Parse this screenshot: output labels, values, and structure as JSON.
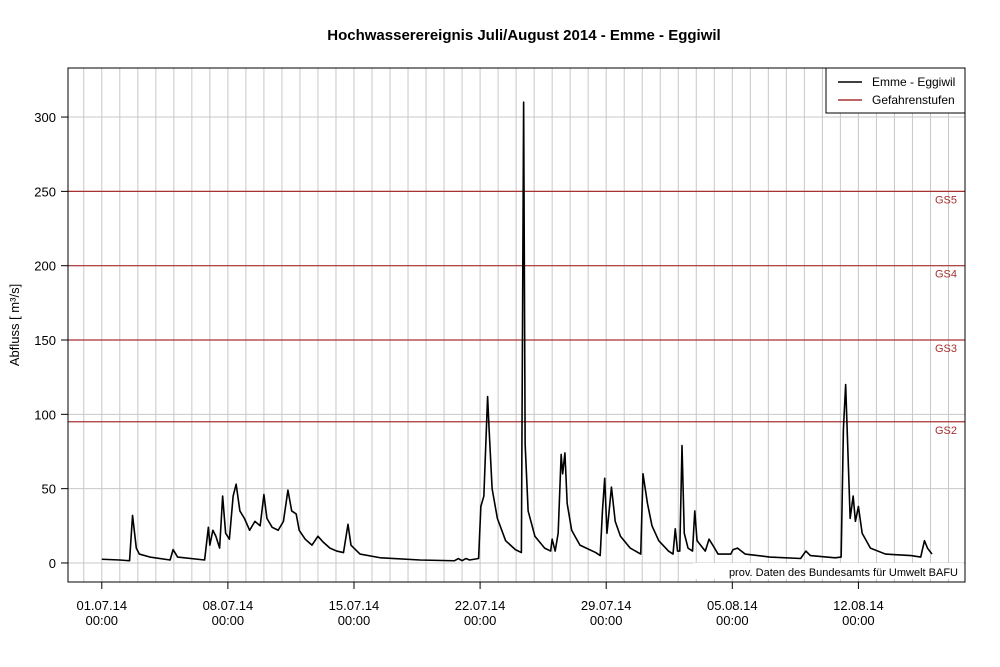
{
  "chart_data": {
    "type": "line",
    "title": "Hochwasserereignis Juli/August 2014 - Emme - Eggiwil",
    "y_label": "Abfluss [ m³/s]",
    "annotation": "prov. Daten des Bundesamts für Umwelt BAFU",
    "x": [
      "2014-07-01 00:00",
      "2014-07-02 00:00",
      "2014-07-02 13:00",
      "2014-07-02 17:00",
      "2014-07-02 22:00",
      "2014-07-03 02:00",
      "2014-07-03 16:00",
      "2014-07-04 19:00",
      "2014-07-04 23:00",
      "2014-07-05 05:00",
      "2014-07-06 17:00",
      "2014-07-06 22:00",
      "2014-07-07 00:00",
      "2014-07-07 04:00",
      "2014-07-07 08:00",
      "2014-07-07 13:00",
      "2014-07-07 17:00",
      "2014-07-07 21:00",
      "2014-07-08 02:00",
      "2014-07-08 07:00",
      "2014-07-08 11:00",
      "2014-07-08 16:00",
      "2014-07-08 22:00",
      "2014-07-09 05:00",
      "2014-07-09 12:00",
      "2014-07-09 19:00",
      "2014-07-10 00:00",
      "2014-07-10 04:00",
      "2014-07-10 11:00",
      "2014-07-10 19:00",
      "2014-07-11 02:00",
      "2014-07-11 08:00",
      "2014-07-11 13:00",
      "2014-07-11 19:00",
      "2014-07-11 23:00",
      "2014-07-12 07:00",
      "2014-07-12 16:00",
      "2014-07-13 00:00",
      "2014-07-13 07:00",
      "2014-07-13 16:00",
      "2014-07-14 01:00",
      "2014-07-14 10:00",
      "2014-07-14 16:00",
      "2014-07-14 20:00",
      "2014-07-15 08:00",
      "2014-07-16 11:00",
      "2014-07-18 16:00",
      "2014-07-20 14:00",
      "2014-07-20 19:00",
      "2014-07-21 00:00",
      "2014-07-21 05:00",
      "2014-07-21 10:00",
      "2014-07-21 22:00",
      "2014-07-22 01:00",
      "2014-07-22 05:00",
      "2014-07-22 10:00",
      "2014-07-22 12:00",
      "2014-07-22 16:00",
      "2014-07-22 23:00",
      "2014-07-23 10:00",
      "2014-07-23 23:00",
      "2014-07-24 07:00",
      "2014-07-24 10:00",
      "2014-07-24 12:00",
      "2014-07-24 16:00",
      "2014-07-25 01:00",
      "2014-07-25 14:00",
      "2014-07-25 22:00",
      "2014-07-26 00:00",
      "2014-07-26 04:00",
      "2014-07-26 08:00",
      "2014-07-26 12:00",
      "2014-07-26 14:00",
      "2014-07-26 17:00",
      "2014-07-26 20:00",
      "2014-07-27 02:00",
      "2014-07-27 13:00",
      "2014-07-28 10:00",
      "2014-07-28 16:00",
      "2014-07-28 19:00",
      "2014-07-28 22:00",
      "2014-07-29 01:00",
      "2014-07-29 07:00",
      "2014-07-29 12:00",
      "2014-07-29 19:00",
      "2014-07-30 08:00",
      "2014-07-30 22:00",
      "2014-07-31 01:00",
      "2014-07-31 07:00",
      "2014-07-31 13:00",
      "2014-07-31 22:00",
      "2014-08-01 11:00",
      "2014-08-01 17:00",
      "2014-08-01 20:00",
      "2014-08-01 23:00",
      "2014-08-02 02:00",
      "2014-08-02 05:00",
      "2014-08-02 08:00",
      "2014-08-02 13:00",
      "2014-08-02 19:00",
      "2014-08-02 22:00",
      "2014-08-03 01:00",
      "2014-08-03 12:00",
      "2014-08-03 17:00",
      "2014-08-03 22:00",
      "2014-08-04 05:00",
      "2014-08-04 22:00",
      "2014-08-05 01:00",
      "2014-08-05 07:00",
      "2014-08-05 17:00",
      "2014-08-07 02:00",
      "2014-08-08 19:00",
      "2014-08-09 02:00",
      "2014-08-09 08:00",
      "2014-08-10 17:00",
      "2014-08-11 01:00",
      "2014-08-11 04:00",
      "2014-08-11 07:00",
      "2014-08-11 11:00",
      "2014-08-11 13:00",
      "2014-08-11 17:00",
      "2014-08-11 20:00",
      "2014-08-12 00:00",
      "2014-08-12 05:00",
      "2014-08-12 16:00",
      "2014-08-13 12:00",
      "2014-08-14 22:00",
      "2014-08-15 11:00",
      "2014-08-15 16:00",
      "2014-08-15 20:00",
      "2014-08-16 02:00"
    ],
    "series": [
      {
        "name": "Emme - Eggiwil",
        "color": "#000000",
        "values": [
          2.5,
          2,
          1.5,
          32,
          10,
          6,
          4,
          2,
          9,
          4,
          2,
          24,
          12,
          22,
          18,
          10,
          45,
          20,
          16,
          45,
          53,
          35,
          30,
          22,
          28,
          25,
          46,
          30,
          24,
          22,
          28,
          49,
          35,
          33,
          22,
          16,
          12,
          18,
          14,
          10,
          8,
          7,
          26,
          12,
          6,
          3.5,
          2,
          1.5,
          3,
          1.5,
          3,
          2,
          3,
          38,
          45,
          112,
          90,
          50,
          30,
          15,
          9,
          7,
          310,
          80,
          35,
          18,
          10,
          8,
          16,
          8,
          20,
          73,
          60,
          74,
          40,
          22,
          12,
          7,
          5,
          35,
          57,
          20,
          51,
          28,
          18,
          10,
          6,
          60,
          40,
          25,
          15,
          8,
          6,
          23,
          8,
          8,
          79,
          20,
          10,
          8,
          35,
          15,
          8,
          16,
          12,
          6,
          6,
          9,
          10,
          6,
          4,
          3,
          8,
          5,
          3.5,
          4,
          90,
          120,
          60,
          30,
          45,
          28,
          38,
          20,
          10,
          6,
          5,
          4,
          15,
          10,
          6
        ]
      }
    ],
    "thresholds": {
      "name": "Gefahrenstufen",
      "color": "#a83232",
      "levels": [
        {
          "value": 95,
          "label": "GS2"
        },
        {
          "value": 150,
          "label": "GS3"
        },
        {
          "value": 200,
          "label": "GS4"
        },
        {
          "value": 250,
          "label": "GS5"
        }
      ]
    },
    "xlim": [
      "2014-06-29 03:00",
      "2014-08-17 22:00"
    ],
    "xticks": [
      {
        "value": "2014-07-01 00:00",
        "label": "01.07.14 00:00"
      },
      {
        "value": "2014-07-08 00:00",
        "label": "08.07.14 00:00"
      },
      {
        "value": "2014-07-15 00:00",
        "label": "15.07.14 00:00"
      },
      {
        "value": "2014-07-22 00:00",
        "label": "22.07.14 00:00"
      },
      {
        "value": "2014-07-29 00:00",
        "label": "29.07.14 00:00"
      },
      {
        "value": "2014-08-05 00:00",
        "label": "05.08.14 00:00"
      },
      {
        "value": "2014-08-12 00:00",
        "label": "12.08.14 00:00"
      }
    ],
    "xgrid": [
      "2014-06-30",
      "2014-07-01",
      "2014-07-02",
      "2014-07-03",
      "2014-07-04",
      "2014-07-05",
      "2014-07-06",
      "2014-07-07",
      "2014-07-08",
      "2014-07-09",
      "2014-07-10",
      "2014-07-11",
      "2014-07-12",
      "2014-07-13",
      "2014-07-14",
      "2014-07-15",
      "2014-07-16",
      "2014-07-17",
      "2014-07-18",
      "2014-07-19",
      "2014-07-20",
      "2014-07-21",
      "2014-07-22",
      "2014-07-23",
      "2014-07-24",
      "2014-07-25",
      "2014-07-26",
      "2014-07-27",
      "2014-07-28",
      "2014-07-29",
      "2014-07-30",
      "2014-07-31",
      "2014-08-01",
      "2014-08-02",
      "2014-08-03",
      "2014-08-04",
      "2014-08-05",
      "2014-08-06",
      "2014-08-07",
      "2014-08-08",
      "2014-08-09",
      "2014-08-10",
      "2014-08-11",
      "2014-08-12",
      "2014-08-13",
      "2014-08-14",
      "2014-08-15",
      "2014-08-16",
      "2014-08-17"
    ],
    "ylim": [
      -12.8,
      333
    ],
    "yticks": [
      0,
      50,
      100,
      150,
      200,
      250,
      300
    ],
    "grid": true,
    "legend": "top-right"
  }
}
